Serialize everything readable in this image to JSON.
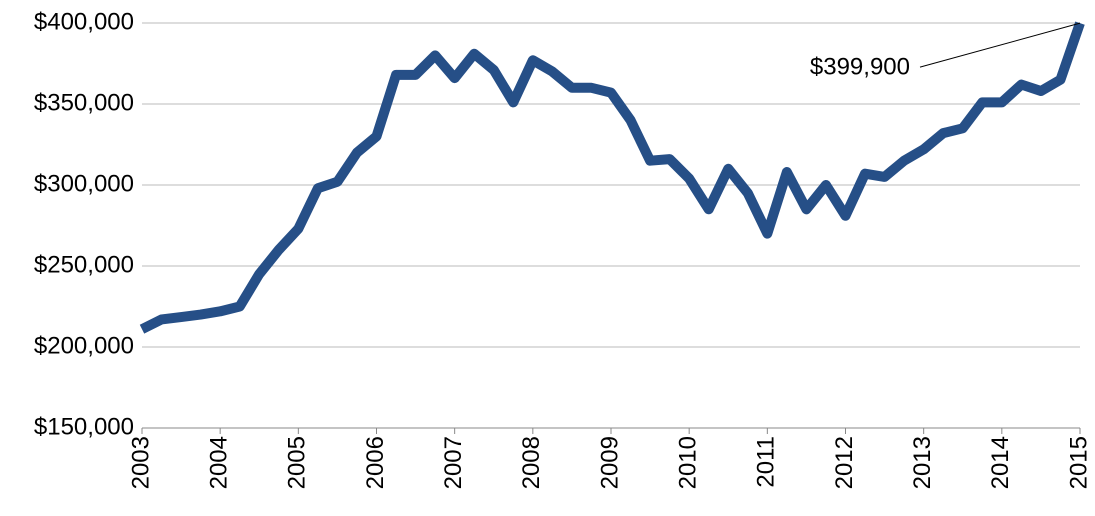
{
  "chart_data": {
    "type": "line",
    "x": [
      2003,
      2003.25,
      2003.5,
      2003.75,
      2004,
      2004.25,
      2004.5,
      2004.75,
      2005,
      2005.25,
      2005.5,
      2005.75,
      2006,
      2006.25,
      2006.5,
      2006.75,
      2007,
      2007.25,
      2007.5,
      2007.75,
      2008,
      2008.25,
      2008.5,
      2008.75,
      2009,
      2009.25,
      2009.5,
      2009.75,
      2010,
      2010.25,
      2010.5,
      2010.75,
      2011,
      2011.25,
      2011.5,
      2011.75,
      2012,
      2012.25,
      2012.5,
      2012.75,
      2013,
      2013.25,
      2013.5,
      2013.75,
      2014,
      2014.25,
      2014.5,
      2014.75,
      2015
    ],
    "series": [
      {
        "color": "#264f87",
        "values": [
          211000,
          217000,
          218500,
          220000,
          222000,
          225000,
          245000,
          260000,
          273000,
          298000,
          302000,
          320000,
          330000,
          368000,
          368000,
          380000,
          366000,
          381000,
          371000,
          351000,
          377000,
          370000,
          360000,
          360000,
          357000,
          340000,
          315000,
          316000,
          304000,
          285000,
          310000,
          295000,
          270000,
          308000,
          285000,
          300000,
          281000,
          307000,
          305000,
          315000,
          322000,
          332000,
          335000,
          351000,
          351000,
          362000,
          358000,
          365000,
          399900
        ]
      }
    ],
    "xlim": [
      2003,
      2015
    ],
    "xticks": [
      2003,
      2004,
      2005,
      2006,
      2007,
      2008,
      2009,
      2010,
      2011,
      2012,
      2013,
      2014,
      2015
    ],
    "ylim": [
      150000,
      400000
    ],
    "yticks": [
      {
        "value": 150000,
        "label": "$150,000"
      },
      {
        "value": 200000,
        "label": "$200,000"
      },
      {
        "value": 250000,
        "label": "$250,000"
      },
      {
        "value": 300000,
        "label": "$300,000"
      },
      {
        "value": 350000,
        "label": "$350,000"
      },
      {
        "value": 400000,
        "label": "$400,000"
      }
    ],
    "grid": true,
    "annotation": {
      "label": "$399,900",
      "value": 399900,
      "x": 2015
    }
  }
}
